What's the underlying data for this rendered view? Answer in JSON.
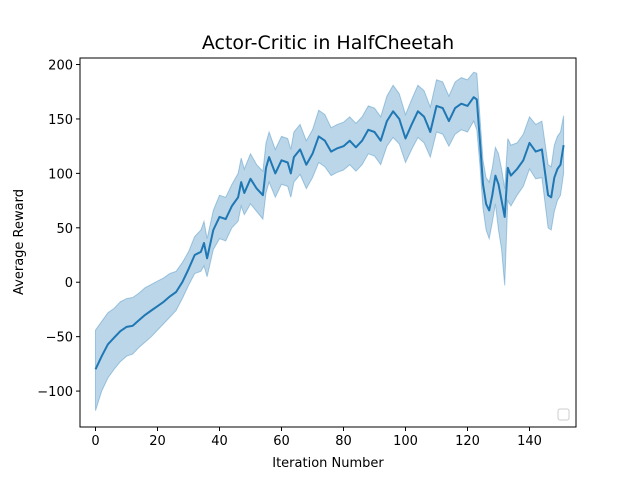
{
  "chart_data": {
    "type": "line",
    "title": "Actor-Critic in HalfCheetah",
    "xlabel": "Iteration Number",
    "ylabel": "Average Reward",
    "xlim": [
      -5,
      155
    ],
    "ylim": [
      -133,
      206
    ],
    "xticks": [
      0,
      20,
      40,
      60,
      80,
      100,
      120,
      140
    ],
    "yticks": [
      -100,
      -50,
      0,
      50,
      100,
      150,
      200
    ],
    "xtick_labels": [
      "0",
      "20",
      "40",
      "60",
      "80",
      "100",
      "120",
      "140"
    ],
    "ytick_labels": [
      "−100",
      "−50",
      "0",
      "50",
      "100",
      "150",
      "200"
    ],
    "grid": false,
    "legend": "lower-right (empty)",
    "colors": {
      "line": "#1f77b4",
      "band": "#1f77b4"
    },
    "series": [
      {
        "mean": [
          {
            "x": 0,
            "y": -80
          },
          {
            "x": 2,
            "y": -68
          },
          {
            "x": 4,
            "y": -57
          },
          {
            "x": 6,
            "y": -51
          },
          {
            "x": 8,
            "y": -45
          },
          {
            "x": 10,
            "y": -41
          },
          {
            "x": 12,
            "y": -40
          },
          {
            "x": 14,
            "y": -35
          },
          {
            "x": 16,
            "y": -30
          },
          {
            "x": 18,
            "y": -26
          },
          {
            "x": 20,
            "y": -22
          },
          {
            "x": 22,
            "y": -18
          },
          {
            "x": 24,
            "y": -13
          },
          {
            "x": 26,
            "y": -9
          },
          {
            "x": 28,
            "y": 0
          },
          {
            "x": 30,
            "y": 12
          },
          {
            "x": 32,
            "y": 25
          },
          {
            "x": 34,
            "y": 28
          },
          {
            "x": 35,
            "y": 36
          },
          {
            "x": 36,
            "y": 22
          },
          {
            "x": 38,
            "y": 48
          },
          {
            "x": 40,
            "y": 60
          },
          {
            "x": 42,
            "y": 58
          },
          {
            "x": 44,
            "y": 70
          },
          {
            "x": 46,
            "y": 78
          },
          {
            "x": 47,
            "y": 92
          },
          {
            "x": 48,
            "y": 82
          },
          {
            "x": 50,
            "y": 95
          },
          {
            "x": 52,
            "y": 86
          },
          {
            "x": 54,
            "y": 80
          },
          {
            "x": 55,
            "y": 105
          },
          {
            "x": 56,
            "y": 115
          },
          {
            "x": 58,
            "y": 100
          },
          {
            "x": 60,
            "y": 112
          },
          {
            "x": 62,
            "y": 110
          },
          {
            "x": 63,
            "y": 100
          },
          {
            "x": 64,
            "y": 115
          },
          {
            "x": 66,
            "y": 122
          },
          {
            "x": 68,
            "y": 108
          },
          {
            "x": 70,
            "y": 118
          },
          {
            "x": 72,
            "y": 134
          },
          {
            "x": 74,
            "y": 130
          },
          {
            "x": 76,
            "y": 120
          },
          {
            "x": 78,
            "y": 123
          },
          {
            "x": 80,
            "y": 125
          },
          {
            "x": 82,
            "y": 130
          },
          {
            "x": 84,
            "y": 124
          },
          {
            "x": 86,
            "y": 130
          },
          {
            "x": 88,
            "y": 140
          },
          {
            "x": 90,
            "y": 138
          },
          {
            "x": 92,
            "y": 130
          },
          {
            "x": 94,
            "y": 148
          },
          {
            "x": 96,
            "y": 157
          },
          {
            "x": 98,
            "y": 150
          },
          {
            "x": 100,
            "y": 132
          },
          {
            "x": 102,
            "y": 145
          },
          {
            "x": 104,
            "y": 157
          },
          {
            "x": 106,
            "y": 152
          },
          {
            "x": 108,
            "y": 138
          },
          {
            "x": 110,
            "y": 162
          },
          {
            "x": 112,
            "y": 160
          },
          {
            "x": 114,
            "y": 148
          },
          {
            "x": 116,
            "y": 160
          },
          {
            "x": 118,
            "y": 164
          },
          {
            "x": 120,
            "y": 162
          },
          {
            "x": 122,
            "y": 170
          },
          {
            "x": 123,
            "y": 168
          },
          {
            "x": 124,
            "y": 130
          },
          {
            "x": 125,
            "y": 90
          },
          {
            "x": 126,
            "y": 72
          },
          {
            "x": 127,
            "y": 66
          },
          {
            "x": 128,
            "y": 80
          },
          {
            "x": 129,
            "y": 98
          },
          {
            "x": 130,
            "y": 90
          },
          {
            "x": 131,
            "y": 75
          },
          {
            "x": 132,
            "y": 60
          },
          {
            "x": 133,
            "y": 105
          },
          {
            "x": 134,
            "y": 98
          },
          {
            "x": 136,
            "y": 104
          },
          {
            "x": 138,
            "y": 112
          },
          {
            "x": 140,
            "y": 128
          },
          {
            "x": 142,
            "y": 120
          },
          {
            "x": 144,
            "y": 122
          },
          {
            "x": 146,
            "y": 80
          },
          {
            "x": 147,
            "y": 78
          },
          {
            "x": 148,
            "y": 96
          },
          {
            "x": 149,
            "y": 104
          },
          {
            "x": 150,
            "y": 108
          },
          {
            "x": 151,
            "y": 126
          }
        ],
        "lower": [
          {
            "x": 0,
            "y": -118
          },
          {
            "x": 2,
            "y": -100
          },
          {
            "x": 4,
            "y": -88
          },
          {
            "x": 6,
            "y": -80
          },
          {
            "x": 8,
            "y": -73
          },
          {
            "x": 10,
            "y": -68
          },
          {
            "x": 12,
            "y": -66
          },
          {
            "x": 14,
            "y": -60
          },
          {
            "x": 16,
            "y": -55
          },
          {
            "x": 18,
            "y": -50
          },
          {
            "x": 20,
            "y": -44
          },
          {
            "x": 22,
            "y": -38
          },
          {
            "x": 24,
            "y": -32
          },
          {
            "x": 26,
            "y": -26
          },
          {
            "x": 28,
            "y": -15
          },
          {
            "x": 30,
            "y": -3
          },
          {
            "x": 32,
            "y": 8
          },
          {
            "x": 34,
            "y": 10
          },
          {
            "x": 35,
            "y": 15
          },
          {
            "x": 36,
            "y": 5
          },
          {
            "x": 38,
            "y": 30
          },
          {
            "x": 40,
            "y": 40
          },
          {
            "x": 42,
            "y": 38
          },
          {
            "x": 44,
            "y": 50
          },
          {
            "x": 46,
            "y": 56
          },
          {
            "x": 47,
            "y": 70
          },
          {
            "x": 48,
            "y": 62
          },
          {
            "x": 50,
            "y": 72
          },
          {
            "x": 52,
            "y": 65
          },
          {
            "x": 54,
            "y": 58
          },
          {
            "x": 55,
            "y": 82
          },
          {
            "x": 56,
            "y": 92
          },
          {
            "x": 58,
            "y": 78
          },
          {
            "x": 60,
            "y": 90
          },
          {
            "x": 62,
            "y": 88
          },
          {
            "x": 63,
            "y": 78
          },
          {
            "x": 64,
            "y": 92
          },
          {
            "x": 66,
            "y": 99
          },
          {
            "x": 68,
            "y": 86
          },
          {
            "x": 70,
            "y": 96
          },
          {
            "x": 72,
            "y": 110
          },
          {
            "x": 74,
            "y": 106
          },
          {
            "x": 76,
            "y": 98
          },
          {
            "x": 78,
            "y": 101
          },
          {
            "x": 80,
            "y": 103
          },
          {
            "x": 82,
            "y": 108
          },
          {
            "x": 84,
            "y": 102
          },
          {
            "x": 86,
            "y": 108
          },
          {
            "x": 88,
            "y": 118
          },
          {
            "x": 90,
            "y": 116
          },
          {
            "x": 92,
            "y": 108
          },
          {
            "x": 94,
            "y": 125
          },
          {
            "x": 96,
            "y": 133
          },
          {
            "x": 98,
            "y": 127
          },
          {
            "x": 100,
            "y": 110
          },
          {
            "x": 102,
            "y": 122
          },
          {
            "x": 104,
            "y": 133
          },
          {
            "x": 106,
            "y": 128
          },
          {
            "x": 108,
            "y": 115
          },
          {
            "x": 110,
            "y": 138
          },
          {
            "x": 112,
            "y": 136
          },
          {
            "x": 114,
            "y": 125
          },
          {
            "x": 116,
            "y": 136
          },
          {
            "x": 118,
            "y": 140
          },
          {
            "x": 120,
            "y": 138
          },
          {
            "x": 122,
            "y": 148
          },
          {
            "x": 123,
            "y": 140
          },
          {
            "x": 124,
            "y": 108
          },
          {
            "x": 125,
            "y": 68
          },
          {
            "x": 126,
            "y": 48
          },
          {
            "x": 127,
            "y": 40
          },
          {
            "x": 128,
            "y": 55
          },
          {
            "x": 129,
            "y": 72
          },
          {
            "x": 130,
            "y": 48
          },
          {
            "x": 131,
            "y": 30
          },
          {
            "x": 132,
            "y": -3
          },
          {
            "x": 133,
            "y": 75
          },
          {
            "x": 134,
            "y": 70
          },
          {
            "x": 136,
            "y": 80
          },
          {
            "x": 138,
            "y": 88
          },
          {
            "x": 140,
            "y": 104
          },
          {
            "x": 142,
            "y": 95
          },
          {
            "x": 144,
            "y": 96
          },
          {
            "x": 146,
            "y": 50
          },
          {
            "x": 147,
            "y": 48
          },
          {
            "x": 148,
            "y": 65
          },
          {
            "x": 149,
            "y": 75
          },
          {
            "x": 150,
            "y": 80
          },
          {
            "x": 151,
            "y": 100
          }
        ],
        "upper": [
          {
            "x": 0,
            "y": -44
          },
          {
            "x": 2,
            "y": -36
          },
          {
            "x": 4,
            "y": -28
          },
          {
            "x": 6,
            "y": -24
          },
          {
            "x": 8,
            "y": -18
          },
          {
            "x": 10,
            "y": -15
          },
          {
            "x": 12,
            "y": -14
          },
          {
            "x": 14,
            "y": -10
          },
          {
            "x": 16,
            "y": -5
          },
          {
            "x": 18,
            "y": -2
          },
          {
            "x": 20,
            "y": 1
          },
          {
            "x": 22,
            "y": 4
          },
          {
            "x": 24,
            "y": 8
          },
          {
            "x": 26,
            "y": 10
          },
          {
            "x": 28,
            "y": 18
          },
          {
            "x": 30,
            "y": 28
          },
          {
            "x": 32,
            "y": 42
          },
          {
            "x": 34,
            "y": 48
          },
          {
            "x": 35,
            "y": 56
          },
          {
            "x": 36,
            "y": 40
          },
          {
            "x": 38,
            "y": 66
          },
          {
            "x": 40,
            "y": 80
          },
          {
            "x": 42,
            "y": 78
          },
          {
            "x": 44,
            "y": 90
          },
          {
            "x": 46,
            "y": 100
          },
          {
            "x": 47,
            "y": 114
          },
          {
            "x": 48,
            "y": 104
          },
          {
            "x": 50,
            "y": 118
          },
          {
            "x": 52,
            "y": 108
          },
          {
            "x": 54,
            "y": 102
          },
          {
            "x": 55,
            "y": 128
          },
          {
            "x": 56,
            "y": 138
          },
          {
            "x": 58,
            "y": 122
          },
          {
            "x": 60,
            "y": 134
          },
          {
            "x": 62,
            "y": 132
          },
          {
            "x": 63,
            "y": 122
          },
          {
            "x": 64,
            "y": 138
          },
          {
            "x": 66,
            "y": 145
          },
          {
            "x": 68,
            "y": 130
          },
          {
            "x": 70,
            "y": 140
          },
          {
            "x": 72,
            "y": 158
          },
          {
            "x": 74,
            "y": 154
          },
          {
            "x": 76,
            "y": 142
          },
          {
            "x": 78,
            "y": 145
          },
          {
            "x": 80,
            "y": 147
          },
          {
            "x": 82,
            "y": 152
          },
          {
            "x": 84,
            "y": 146
          },
          {
            "x": 86,
            "y": 152
          },
          {
            "x": 88,
            "y": 162
          },
          {
            "x": 90,
            "y": 160
          },
          {
            "x": 92,
            "y": 152
          },
          {
            "x": 94,
            "y": 171
          },
          {
            "x": 96,
            "y": 181
          },
          {
            "x": 98,
            "y": 173
          },
          {
            "x": 100,
            "y": 154
          },
          {
            "x": 102,
            "y": 168
          },
          {
            "x": 104,
            "y": 181
          },
          {
            "x": 106,
            "y": 176
          },
          {
            "x": 108,
            "y": 161
          },
          {
            "x": 110,
            "y": 186
          },
          {
            "x": 112,
            "y": 184
          },
          {
            "x": 114,
            "y": 171
          },
          {
            "x": 116,
            "y": 184
          },
          {
            "x": 118,
            "y": 188
          },
          {
            "x": 120,
            "y": 186
          },
          {
            "x": 122,
            "y": 193
          },
          {
            "x": 123,
            "y": 192
          },
          {
            "x": 124,
            "y": 152
          },
          {
            "x": 125,
            "y": 112
          },
          {
            "x": 126,
            "y": 96
          },
          {
            "x": 127,
            "y": 92
          },
          {
            "x": 128,
            "y": 105
          },
          {
            "x": 129,
            "y": 124
          },
          {
            "x": 130,
            "y": 118
          },
          {
            "x": 131,
            "y": 104
          },
          {
            "x": 132,
            "y": 86
          },
          {
            "x": 133,
            "y": 132
          },
          {
            "x": 134,
            "y": 126
          },
          {
            "x": 136,
            "y": 128
          },
          {
            "x": 138,
            "y": 136
          },
          {
            "x": 140,
            "y": 152
          },
          {
            "x": 142,
            "y": 145
          },
          {
            "x": 144,
            "y": 148
          },
          {
            "x": 146,
            "y": 108
          },
          {
            "x": 147,
            "y": 106
          },
          {
            "x": 148,
            "y": 126
          },
          {
            "x": 149,
            "y": 134
          },
          {
            "x": 150,
            "y": 138
          },
          {
            "x": 151,
            "y": 153
          }
        ]
      }
    ]
  }
}
